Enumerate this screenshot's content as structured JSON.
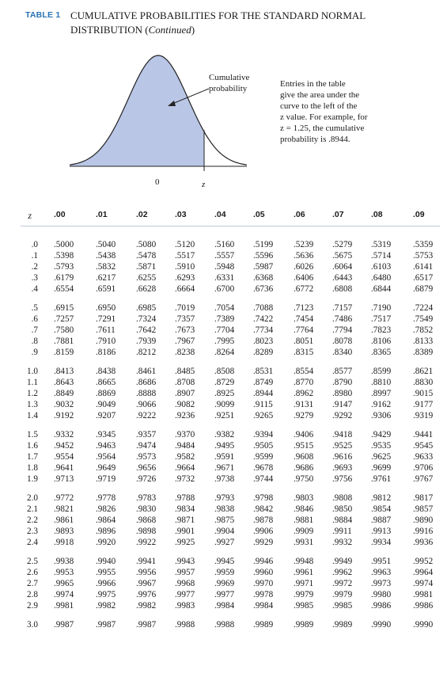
{
  "header": {
    "table_number": "TABLE 1",
    "title_line1": "CUMULATIVE PROBABILITIES FOR THE STANDARD NORMAL",
    "title_line2_main": "DISTRIBUTION (",
    "title_line2_italic": "Continued",
    "title_line2_end": ")"
  },
  "figure": {
    "curve_label_line1": "Cumulative",
    "curve_label_line2": "probability",
    "entries_note_lines": [
      "Entries in the table",
      "give the area under the",
      "curve to the left of the",
      "z value. For example, for",
      "z = 1.25, the cumulative",
      "probability is .8944."
    ],
    "axis_zero_label": "0",
    "axis_z_label": "z",
    "fill_color": "#b9c6e6",
    "line_color": "#222222"
  },
  "table": {
    "z_header": "z",
    "columns": [
      ".00",
      ".01",
      ".02",
      ".03",
      ".04",
      ".05",
      ".06",
      ".07",
      ".08",
      ".09"
    ],
    "groups": [
      [
        {
          "z": ".0",
          "values": [
            ".5000",
            ".5040",
            ".5080",
            ".5120",
            ".5160",
            ".5199",
            ".5239",
            ".5279",
            ".5319",
            ".5359"
          ]
        },
        {
          "z": ".1",
          "values": [
            ".5398",
            ".5438",
            ".5478",
            ".5517",
            ".5557",
            ".5596",
            ".5636",
            ".5675",
            ".5714",
            ".5753"
          ]
        },
        {
          "z": ".2",
          "values": [
            ".5793",
            ".5832",
            ".5871",
            ".5910",
            ".5948",
            ".5987",
            ".6026",
            ".6064",
            ".6103",
            ".6141"
          ]
        },
        {
          "z": ".3",
          "values": [
            ".6179",
            ".6217",
            ".6255",
            ".6293",
            ".6331",
            ".6368",
            ".6406",
            ".6443",
            ".6480",
            ".6517"
          ]
        },
        {
          "z": ".4",
          "values": [
            ".6554",
            ".6591",
            ".6628",
            ".6664",
            ".6700",
            ".6736",
            ".6772",
            ".6808",
            ".6844",
            ".6879"
          ]
        }
      ],
      [
        {
          "z": ".5",
          "values": [
            ".6915",
            ".6950",
            ".6985",
            ".7019",
            ".7054",
            ".7088",
            ".7123",
            ".7157",
            ".7190",
            ".7224"
          ]
        },
        {
          "z": ".6",
          "values": [
            ".7257",
            ".7291",
            ".7324",
            ".7357",
            ".7389",
            ".7422",
            ".7454",
            ".7486",
            ".7517",
            ".7549"
          ]
        },
        {
          "z": ".7",
          "values": [
            ".7580",
            ".7611",
            ".7642",
            ".7673",
            ".7704",
            ".7734",
            ".7764",
            ".7794",
            ".7823",
            ".7852"
          ]
        },
        {
          "z": ".8",
          "values": [
            ".7881",
            ".7910",
            ".7939",
            ".7967",
            ".7995",
            ".8023",
            ".8051",
            ".8078",
            ".8106",
            ".8133"
          ]
        },
        {
          "z": ".9",
          "values": [
            ".8159",
            ".8186",
            ".8212",
            ".8238",
            ".8264",
            ".8289",
            ".8315",
            ".8340",
            ".8365",
            ".8389"
          ]
        }
      ],
      [
        {
          "z": "1.0",
          "values": [
            ".8413",
            ".8438",
            ".8461",
            ".8485",
            ".8508",
            ".8531",
            ".8554",
            ".8577",
            ".8599",
            ".8621"
          ]
        },
        {
          "z": "1.1",
          "values": [
            ".8643",
            ".8665",
            ".8686",
            ".8708",
            ".8729",
            ".8749",
            ".8770",
            ".8790",
            ".8810",
            ".8830"
          ]
        },
        {
          "z": "1.2",
          "values": [
            ".8849",
            ".8869",
            ".8888",
            ".8907",
            ".8925",
            ".8944",
            ".8962",
            ".8980",
            ".8997",
            ".9015"
          ]
        },
        {
          "z": "1.3",
          "values": [
            ".9032",
            ".9049",
            ".9066",
            ".9082",
            ".9099",
            ".9115",
            ".9131",
            ".9147",
            ".9162",
            ".9177"
          ]
        },
        {
          "z": "1.4",
          "values": [
            ".9192",
            ".9207",
            ".9222",
            ".9236",
            ".9251",
            ".9265",
            ".9279",
            ".9292",
            ".9306",
            ".9319"
          ]
        }
      ],
      [
        {
          "z": "1.5",
          "values": [
            ".9332",
            ".9345",
            ".9357",
            ".9370",
            ".9382",
            ".9394",
            ".9406",
            ".9418",
            ".9429",
            ".9441"
          ]
        },
        {
          "z": "1.6",
          "values": [
            ".9452",
            ".9463",
            ".9474",
            ".9484",
            ".9495",
            ".9505",
            ".9515",
            ".9525",
            ".9535",
            ".9545"
          ]
        },
        {
          "z": "1.7",
          "values": [
            ".9554",
            ".9564",
            ".9573",
            ".9582",
            ".9591",
            ".9599",
            ".9608",
            ".9616",
            ".9625",
            ".9633"
          ]
        },
        {
          "z": "1.8",
          "values": [
            ".9641",
            ".9649",
            ".9656",
            ".9664",
            ".9671",
            ".9678",
            ".9686",
            ".9693",
            ".9699",
            ".9706"
          ]
        },
        {
          "z": "1.9",
          "values": [
            ".9713",
            ".9719",
            ".9726",
            ".9732",
            ".9738",
            ".9744",
            ".9750",
            ".9756",
            ".9761",
            ".9767"
          ]
        }
      ],
      [
        {
          "z": "2.0",
          "values": [
            ".9772",
            ".9778",
            ".9783",
            ".9788",
            ".9793",
            ".9798",
            ".9803",
            ".9808",
            ".9812",
            ".9817"
          ]
        },
        {
          "z": "2.1",
          "values": [
            ".9821",
            ".9826",
            ".9830",
            ".9834",
            ".9838",
            ".9842",
            ".9846",
            ".9850",
            ".9854",
            ".9857"
          ]
        },
        {
          "z": "2.2",
          "values": [
            ".9861",
            ".9864",
            ".9868",
            ".9871",
            ".9875",
            ".9878",
            ".9881",
            ".9884",
            ".9887",
            ".9890"
          ]
        },
        {
          "z": "2.3",
          "values": [
            ".9893",
            ".9896",
            ".9898",
            ".9901",
            ".9904",
            ".9906",
            ".9909",
            ".9911",
            ".9913",
            ".9916"
          ]
        },
        {
          "z": "2.4",
          "values": [
            ".9918",
            ".9920",
            ".9922",
            ".9925",
            ".9927",
            ".9929",
            ".9931",
            ".9932",
            ".9934",
            ".9936"
          ]
        }
      ],
      [
        {
          "z": "2.5",
          "values": [
            ".9938",
            ".9940",
            ".9941",
            ".9943",
            ".9945",
            ".9946",
            ".9948",
            ".9949",
            ".9951",
            ".9952"
          ]
        },
        {
          "z": "2.6",
          "values": [
            ".9953",
            ".9955",
            ".9956",
            ".9957",
            ".9959",
            ".9960",
            ".9961",
            ".9962",
            ".9963",
            ".9964"
          ]
        },
        {
          "z": "2.7",
          "values": [
            ".9965",
            ".9966",
            ".9967",
            ".9968",
            ".9969",
            ".9970",
            ".9971",
            ".9972",
            ".9973",
            ".9974"
          ]
        },
        {
          "z": "2.8",
          "values": [
            ".9974",
            ".9975",
            ".9976",
            ".9977",
            ".9977",
            ".9978",
            ".9979",
            ".9979",
            ".9980",
            ".9981"
          ]
        },
        {
          "z": "2.9",
          "values": [
            ".9981",
            ".9982",
            ".9982",
            ".9983",
            ".9984",
            ".9984",
            ".9985",
            ".9985",
            ".9986",
            ".9986"
          ]
        }
      ],
      [
        {
          "z": "3.0",
          "values": [
            ".9987",
            ".9987",
            ".9987",
            ".9988",
            ".9988",
            ".9989",
            ".9989",
            ".9989",
            ".9990",
            ".9990"
          ]
        }
      ]
    ]
  }
}
